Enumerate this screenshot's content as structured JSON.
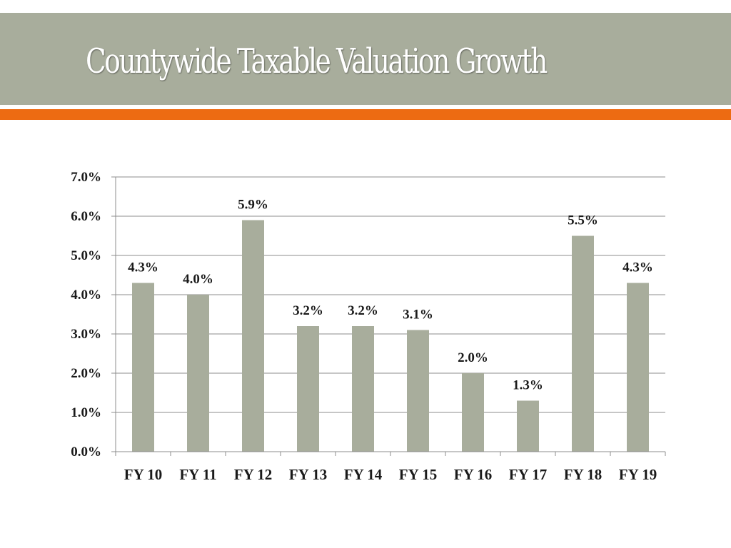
{
  "slide": {
    "title": "Countywide Taxable Valuation Growth"
  },
  "colors": {
    "title_band": "#a8ad9c",
    "accent_bar": "#ed6b12",
    "bar": "#a8ad9c",
    "gridline": "#8c8c8c",
    "text": "#1a1a1a"
  },
  "chart_data": {
    "type": "bar",
    "categories": [
      "FY 10",
      "FY 11",
      "FY 12",
      "FY 13",
      "FY 14",
      "FY 15",
      "FY 16",
      "FY 17",
      "FY 18",
      "FY 19"
    ],
    "values": [
      4.3,
      4.0,
      5.9,
      3.2,
      3.2,
      3.1,
      2.0,
      1.3,
      5.5,
      4.3
    ],
    "data_labels": [
      "4.3%",
      "4.0%",
      "5.9%",
      "3.2%",
      "3.2%",
      "3.1%",
      "2.0%",
      "1.3%",
      "5.5%",
      "4.3%"
    ],
    "ylim": [
      0,
      7
    ],
    "yticks": [
      0,
      1,
      2,
      3,
      4,
      5,
      6,
      7
    ],
    "ytick_labels": [
      "0.0%",
      "1.0%",
      "2.0%",
      "3.0%",
      "4.0%",
      "5.0%",
      "6.0%",
      "7.0%"
    ],
    "grid": true,
    "legend": "none",
    "xlabel": "",
    "ylabel": ""
  }
}
